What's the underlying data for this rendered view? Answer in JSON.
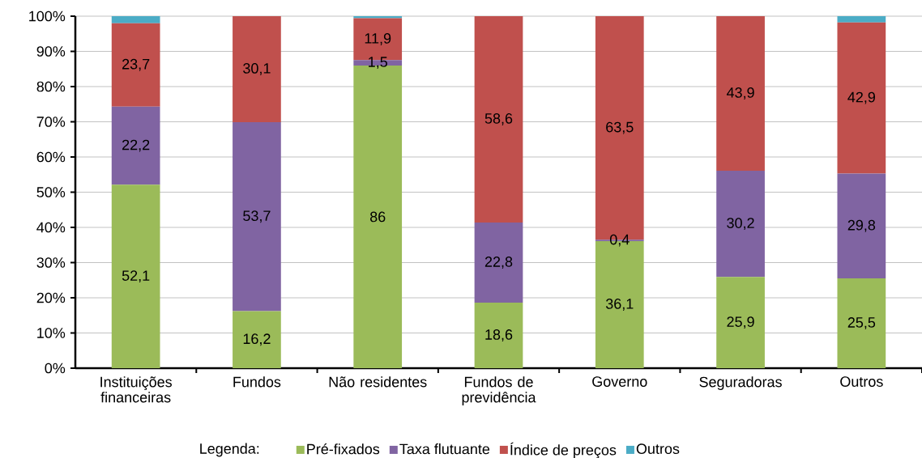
{
  "chart_data": {
    "type": "bar",
    "stacked": true,
    "categories": [
      "Instituições financeiras",
      "Fundos",
      "Não residentes",
      "Fundos de previdência",
      "Governo",
      "Seguradoras",
      "Outros"
    ],
    "series": [
      {
        "name": "Pré-fixados",
        "color": "#9bbb59",
        "values": [
          52.1,
          16.2,
          86,
          18.6,
          36.1,
          25.9,
          25.5
        ],
        "value_labels": [
          "52,1",
          "16,2",
          "86",
          "18,6",
          "36,1",
          "25,9",
          "25,5"
        ]
      },
      {
        "name": "Taxa flutuante",
        "color": "#8064a2",
        "values": [
          22.2,
          53.7,
          1.5,
          22.8,
          0.4,
          30.2,
          29.8
        ],
        "value_labels": [
          "22,2",
          "53,7",
          "1,5",
          "22,8",
          "0,4",
          "30,2",
          "29,8"
        ]
      },
      {
        "name": "Índice de preços",
        "color": "#c0504d",
        "values": [
          23.7,
          30.1,
          11.9,
          58.6,
          63.5,
          43.9,
          42.9
        ],
        "value_labels": [
          "23,7",
          "30,1",
          "11,9",
          "58,6",
          "63,5",
          "43,9",
          "42,9"
        ]
      },
      {
        "name": "Outros",
        "color": "#4bacc6",
        "values": [
          2.0,
          0,
          0.6,
          0,
          0,
          0,
          1.8
        ]
      }
    ],
    "ylim": [
      0,
      100
    ],
    "yticks": [
      {
        "value": 0,
        "label": "0%"
      },
      {
        "value": 10,
        "label": "10%"
      },
      {
        "value": 20,
        "label": "20%"
      },
      {
        "value": 30,
        "label": "30%"
      },
      {
        "value": 40,
        "label": "40%"
      },
      {
        "value": 50,
        "label": "50%"
      },
      {
        "value": 60,
        "label": "60%"
      },
      {
        "value": 70,
        "label": "70%"
      },
      {
        "value": 80,
        "label": "80%"
      },
      {
        "value": 90,
        "label": "90%"
      },
      {
        "value": 100,
        "label": "100%"
      }
    ],
    "grid": "y",
    "legend": "bottom",
    "legend_title": "Legenda:"
  }
}
